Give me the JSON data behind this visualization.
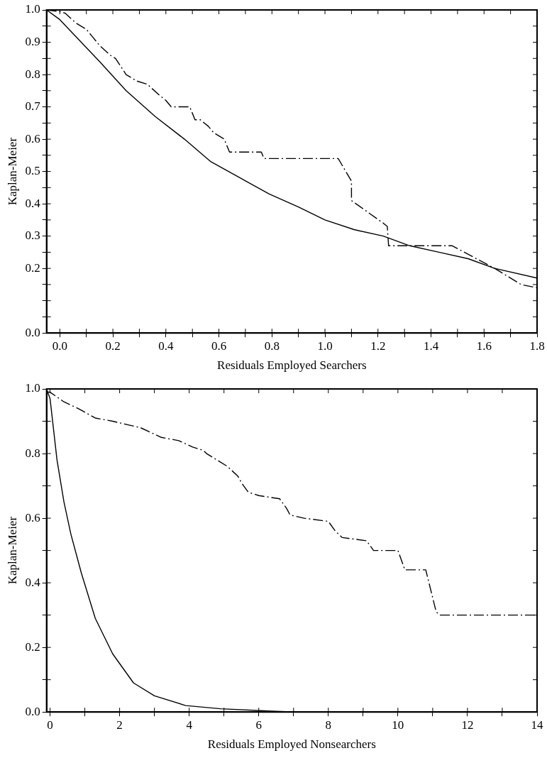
{
  "chart_data": [
    {
      "type": "line",
      "xlabel": "Residuals Employed Searchers",
      "ylabel": "Kaplan-Meier",
      "xlim": [
        -0.05,
        1.8
      ],
      "ylim": [
        0,
        1.0
      ],
      "xticks": [
        {
          "value": 0,
          "label": "0.0"
        },
        {
          "value": 0.1,
          "label": null
        },
        0.2,
        {
          "value": 0.3,
          "label": null
        },
        0.4,
        {
          "value": 0.5,
          "label": null
        },
        0.6,
        {
          "value": 0.7,
          "label": null
        },
        0.8,
        {
          "value": 0.9,
          "label": null
        },
        {
          "value": 1.0,
          "label": "1.0"
        },
        {
          "value": 1.1,
          "label": null
        },
        1.2,
        {
          "value": 1.3,
          "label": null
        },
        1.4,
        {
          "value": 1.5,
          "label": null
        },
        1.6,
        {
          "value": 1.7,
          "label": null
        },
        1.8
      ],
      "yticks": [
        {
          "value": 0,
          "label": "0.0"
        },
        {
          "value": 0.05,
          "label": null
        },
        {
          "value": 0.1,
          "label": null
        },
        {
          "value": 0.15,
          "label": null
        },
        0.2,
        {
          "value": 0.25,
          "label": null
        },
        0.3,
        {
          "value": 0.35,
          "label": null
        },
        0.4,
        {
          "value": 0.45,
          "label": null
        },
        0.5,
        {
          "value": 0.55,
          "label": null
        },
        0.6,
        {
          "value": 0.65,
          "label": null
        },
        0.7,
        {
          "value": 0.75,
          "label": null
        },
        0.8,
        {
          "value": 0.85,
          "label": null
        },
        0.9,
        {
          "value": 0.95,
          "label": null
        },
        {
          "value": 1.0,
          "label": "1.0"
        }
      ],
      "grid": false,
      "legend": false,
      "marker": "none",
      "series": [
        {
          "color": "#000000",
          "line_style": "dashed",
          "x": [
            -0.05,
            0,
            0.02,
            0.06,
            0.1,
            0.12,
            0.15,
            0.19,
            0.21,
            0.25,
            0.29,
            0.33,
            0.37,
            0.4,
            0.42,
            0.49,
            0.51,
            0.53,
            0.56,
            0.58,
            0.62,
            0.63,
            0.64,
            0.76,
            0.77,
            1.05,
            1.1,
            1.1,
            1.22,
            1.235,
            1.24,
            1.48,
            1.64,
            1.74,
            1.8
          ],
          "values": [
            1.0,
            0.995,
            0.99,
            0.96,
            0.94,
            0.92,
            0.89,
            0.86,
            0.85,
            0.8,
            0.78,
            0.77,
            0.74,
            0.72,
            0.7,
            0.7,
            0.66,
            0.66,
            0.64,
            0.62,
            0.6,
            0.58,
            0.56,
            0.56,
            0.54,
            0.54,
            0.47,
            0.41,
            0.34,
            0.33,
            0.27,
            0.27,
            0.2,
            0.15,
            0.14
          ]
        },
        {
          "color": "#000000",
          "line_style": "solid",
          "x": [
            -0.05,
            0,
            0.15,
            0.25,
            0.36,
            0.47,
            0.57,
            0.68,
            0.79,
            0.9,
            1.0,
            1.11,
            1.22,
            1.32,
            1.43,
            1.54,
            1.64,
            1.8
          ],
          "values": [
            1.0,
            0.97,
            0.84,
            0.75,
            0.67,
            0.6,
            0.53,
            0.48,
            0.43,
            0.39,
            0.35,
            0.32,
            0.3,
            0.27,
            0.25,
            0.23,
            0.2,
            0.17
          ]
        }
      ]
    },
    {
      "type": "line",
      "xlabel": "Residuals Employed Nonsearchers",
      "ylabel": "Kaplan-Meier",
      "xlim": [
        -0.1,
        14
      ],
      "ylim": [
        0,
        1.0
      ],
      "xticks": [
        0,
        {
          "value": 1,
          "label": null
        },
        2,
        {
          "value": 3,
          "label": null
        },
        4,
        {
          "value": 5,
          "label": null
        },
        6,
        {
          "value": 7,
          "label": null
        },
        8,
        {
          "value": 9,
          "label": null
        },
        10,
        {
          "value": 11,
          "label": null
        },
        12,
        {
          "value": 13,
          "label": null
        },
        14
      ],
      "yticks": [
        {
          "value": 0,
          "label": "0.0"
        },
        {
          "value": 0.1,
          "label": null
        },
        0.2,
        {
          "value": 0.3,
          "label": null
        },
        0.4,
        {
          "value": 0.5,
          "label": null
        },
        0.6,
        {
          "value": 0.7,
          "label": null
        },
        0.8,
        {
          "value": 0.9,
          "label": null
        },
        {
          "value": 1.0,
          "label": "1.0"
        }
      ],
      "grid": false,
      "legend": false,
      "marker": "none",
      "series": [
        {
          "color": "#000000",
          "line_style": "dashed",
          "x": [
            -0.1,
            0,
            0.4,
            0.8,
            1.3,
            1.8,
            2.2,
            2.6,
            3.2,
            3.7,
            4.1,
            4.4,
            4.5,
            4.8,
            5.1,
            5.4,
            5.5,
            5.7,
            6.0,
            6.6,
            6.8,
            6.9,
            7.3,
            8.0,
            8.2,
            8.4,
            9.1,
            9.3,
            10.0,
            10.2,
            10.8,
            11.1,
            11.2,
            14.0
          ],
          "values": [
            0.99,
            0.99,
            0.96,
            0.94,
            0.91,
            0.9,
            0.89,
            0.88,
            0.85,
            0.84,
            0.82,
            0.81,
            0.8,
            0.78,
            0.76,
            0.73,
            0.71,
            0.68,
            0.67,
            0.66,
            0.63,
            0.61,
            0.6,
            0.59,
            0.56,
            0.54,
            0.53,
            0.5,
            0.5,
            0.44,
            0.44,
            0.31,
            0.3,
            0.3
          ]
        },
        {
          "color": "#000000",
          "line_style": "solid",
          "x": [
            -0.1,
            0,
            0.2,
            0.4,
            0.6,
            0.9,
            1.3,
            1.8,
            2.4,
            3.0,
            3.9,
            4.9,
            6.5,
            7.1
          ],
          "values": [
            1.0,
            0.97,
            0.78,
            0.65,
            0.55,
            0.43,
            0.29,
            0.18,
            0.09,
            0.05,
            0.02,
            0.01,
            0.002,
            0
          ]
        }
      ]
    }
  ]
}
